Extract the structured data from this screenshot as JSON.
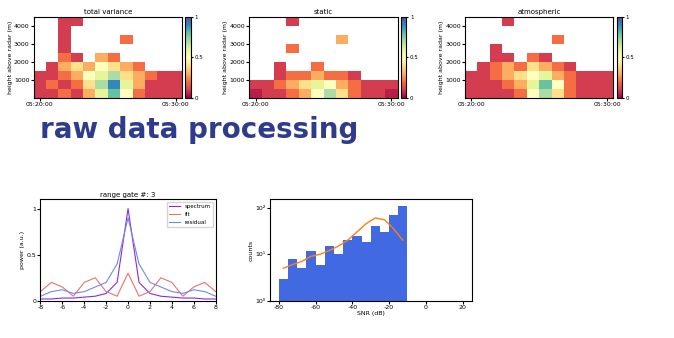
{
  "heading": "raw data processing",
  "chart_data": [
    {
      "type": "heatmap",
      "title": "total variance",
      "y_label": "height above radar (m)",
      "x_edges": [
        0,
        1,
        2,
        3,
        4,
        5,
        6,
        7,
        8,
        9,
        10,
        11,
        12
      ],
      "y_edges": [
        0,
        500,
        1000,
        1500,
        2000,
        2500,
        3000,
        3500,
        4000,
        4500
      ],
      "cells": [
        [
          0.1,
          0.1,
          0.2,
          0.1,
          0.3,
          0.6,
          0.8,
          0.5,
          0.2,
          0.1,
          0.1,
          0.1
        ],
        [
          0.1,
          0.2,
          0.1,
          0.2,
          0.4,
          0.7,
          0.9,
          0.6,
          0.3,
          0.1,
          0.1,
          0.1
        ],
        [
          0.1,
          0.1,
          0.2,
          0.3,
          0.5,
          0.6,
          0.7,
          0.4,
          0.3,
          0.2,
          0.1,
          0.1
        ],
        [
          null,
          0.1,
          0.3,
          0.4,
          0.3,
          0.5,
          0.4,
          0.3,
          0.2,
          null,
          null,
          null
        ],
        [
          null,
          null,
          0.2,
          0.1,
          null,
          0.3,
          0.2,
          null,
          null,
          null,
          null,
          null
        ],
        [
          null,
          null,
          0.1,
          null,
          null,
          null,
          null,
          null,
          null,
          null,
          null,
          null
        ],
        [
          null,
          null,
          0.1,
          null,
          null,
          null,
          null,
          0.2,
          null,
          null,
          null,
          null
        ],
        [
          null,
          null,
          0.1,
          null,
          null,
          null,
          null,
          null,
          null,
          null,
          null,
          null
        ],
        [
          null,
          null,
          0.1,
          0.1,
          null,
          null,
          null,
          null,
          null,
          null,
          null,
          null
        ]
      ],
      "xlim": [
        0,
        12
      ],
      "ylim": [
        0,
        4500
      ],
      "xticks": [
        {
          "value": 0.5,
          "label": "05:20:00"
        },
        {
          "value": 11.5,
          "label": "05:30:00"
        }
      ],
      "yticks": [
        1000,
        2000,
        3000,
        4000
      ],
      "colorbar": {
        "range": [
          0,
          1
        ],
        "ticks": [
          0,
          0.5,
          1
        ]
      }
    },
    {
      "type": "heatmap",
      "title": "static",
      "y_label": "height above radar (m)",
      "x_edges": [
        0,
        1,
        2,
        3,
        4,
        5,
        6,
        7,
        8,
        9,
        10,
        11,
        12
      ],
      "y_edges": [
        0,
        500,
        1000,
        1500,
        2000,
        2500,
        3000,
        3500,
        4000,
        4500
      ],
      "cells": [
        [
          0.05,
          0.1,
          0.1,
          0.2,
          0.3,
          0.5,
          0.7,
          0.4,
          0.2,
          0.1,
          0.1,
          0.05
        ],
        [
          0.1,
          0.1,
          0.2,
          0.3,
          0.4,
          0.6,
          0.5,
          0.3,
          0.2,
          0.1,
          0.1,
          0.1
        ],
        [
          null,
          null,
          0.1,
          0.2,
          0.2,
          0.3,
          0.2,
          0.2,
          0.1,
          null,
          null,
          null
        ],
        [
          null,
          null,
          0.1,
          null,
          null,
          0.2,
          null,
          null,
          null,
          null,
          null,
          null
        ],
        [
          null,
          null,
          null,
          null,
          null,
          null,
          null,
          null,
          null,
          null,
          null,
          null
        ],
        [
          null,
          null,
          null,
          0.2,
          null,
          null,
          null,
          null,
          null,
          null,
          null,
          null
        ],
        [
          null,
          null,
          null,
          null,
          null,
          null,
          null,
          0.3,
          null,
          null,
          null,
          null
        ],
        [
          null,
          null,
          null,
          null,
          null,
          null,
          null,
          null,
          null,
          null,
          null,
          null
        ],
        [
          null,
          null,
          null,
          0.1,
          null,
          null,
          null,
          null,
          null,
          null,
          null,
          null
        ]
      ],
      "xlim": [
        0,
        12
      ],
      "ylim": [
        0,
        4500
      ],
      "xticks": [
        {
          "value": 0.5,
          "label": "05:20:00"
        },
        {
          "value": 11.5,
          "label": "05:30:00"
        }
      ],
      "yticks": [
        1000,
        2000,
        3000,
        4000
      ],
      "colorbar": {
        "range": [
          0,
          1
        ],
        "ticks": [
          0,
          0.5,
          1
        ]
      }
    },
    {
      "type": "heatmap",
      "title": "atmospheric",
      "y_label": "height above radar (m)",
      "x_edges": [
        0,
        1,
        2,
        3,
        4,
        5,
        6,
        7,
        8,
        9,
        10,
        11,
        12
      ],
      "y_edges": [
        0,
        500,
        1000,
        1500,
        2000,
        2500,
        3000,
        3500,
        4000,
        4500
      ],
      "cells": [
        [
          0.1,
          0.1,
          0.1,
          0.1,
          0.2,
          0.5,
          0.7,
          0.4,
          0.2,
          0.1,
          0.1,
          0.1
        ],
        [
          0.1,
          0.1,
          0.1,
          0.2,
          0.3,
          0.6,
          0.8,
          0.5,
          0.2,
          0.1,
          0.1,
          0.1
        ],
        [
          0.1,
          0.1,
          0.2,
          0.3,
          0.4,
          0.5,
          0.6,
          0.3,
          0.2,
          0.1,
          0.1,
          0.1
        ],
        [
          null,
          0.1,
          0.2,
          0.3,
          0.2,
          0.4,
          0.3,
          0.2,
          0.1,
          null,
          null,
          null
        ],
        [
          null,
          null,
          0.1,
          0.1,
          null,
          0.2,
          0.1,
          null,
          null,
          null,
          null,
          null
        ],
        [
          null,
          null,
          0.1,
          null,
          null,
          null,
          null,
          null,
          null,
          null,
          null,
          null
        ],
        [
          null,
          null,
          null,
          null,
          null,
          null,
          null,
          0.2,
          null,
          null,
          null,
          null
        ],
        [
          null,
          null,
          null,
          null,
          null,
          null,
          null,
          null,
          null,
          null,
          null,
          null
        ],
        [
          null,
          null,
          null,
          0.1,
          null,
          null,
          null,
          null,
          null,
          null,
          null,
          null
        ]
      ],
      "xlim": [
        0,
        12
      ],
      "ylim": [
        0,
        4500
      ],
      "xticks": [
        {
          "value": 0.5,
          "label": "05:20:00"
        },
        {
          "value": 11.5,
          "label": "05:30:00"
        }
      ],
      "yticks": [
        1000,
        2000,
        3000,
        4000
      ],
      "colorbar": {
        "range": [
          0,
          1
        ],
        "ticks": [
          0,
          0.5,
          1
        ]
      }
    },
    {
      "type": "line",
      "title": "range gate #: 3",
      "y_label": "power (a.u.)",
      "x": [
        -8,
        -7,
        -6,
        -5,
        -4,
        -3,
        -2,
        -1,
        0,
        1,
        2,
        3,
        4,
        5,
        6,
        7,
        8
      ],
      "series": [
        {
          "name": "spectrum",
          "color": "#8a2be2",
          "values": [
            0.02,
            0.02,
            0.03,
            0.03,
            0.04,
            0.05,
            0.08,
            0.2,
            1.0,
            0.2,
            0.08,
            0.05,
            0.04,
            0.03,
            0.03,
            0.02,
            0.02
          ]
        },
        {
          "name": "fit",
          "color": "#e8736c",
          "values": [
            0.1,
            0.2,
            0.15,
            0.05,
            0.2,
            0.25,
            0.1,
            0.05,
            0.3,
            0.05,
            0.1,
            0.25,
            0.2,
            0.05,
            0.15,
            0.2,
            0.1
          ]
        },
        {
          "name": "residual",
          "color": "#6c8ce8",
          "values": [
            0.05,
            0.1,
            0.12,
            0.08,
            0.1,
            0.15,
            0.2,
            0.4,
            0.9,
            0.4,
            0.2,
            0.15,
            0.1,
            0.08,
            0.12,
            0.1,
            0.05
          ]
        }
      ],
      "xlim": [
        -8,
        8
      ],
      "ylim": [
        0,
        1.1
      ],
      "xticks": [
        -8,
        -6,
        -4,
        -2,
        0,
        2,
        4,
        6,
        8
      ],
      "yticks": [
        0,
        0.5,
        1
      ],
      "legend": "upper right"
    },
    {
      "type": "histogram",
      "x_label": "SNR (dB)",
      "y_label": "counts",
      "bins": [
        -80,
        -75,
        -70,
        -65,
        -60,
        -55,
        -50,
        -45,
        -40,
        -35,
        -30,
        -25,
        -20,
        -15,
        -10
      ],
      "counts": [
        3,
        8,
        5,
        12,
        6,
        15,
        10,
        20,
        25,
        18,
        40,
        30,
        70,
        110
      ],
      "color": "#4169e1",
      "series": [
        {
          "type": "line",
          "color": "#ff7f0e",
          "values": [
            5,
            6,
            7,
            9,
            10,
            12,
            15,
            20,
            30,
            45,
            60,
            55,
            35,
            20
          ]
        }
      ],
      "log": "y",
      "xlim": [
        -85,
        25
      ],
      "ylim": [
        1,
        150
      ],
      "xticks": [
        -80,
        -60,
        -40,
        -20,
        0,
        20
      ],
      "yticks": [
        {
          "value": 1,
          "label": "10⁰"
        },
        {
          "value": 10,
          "label": "10¹"
        },
        {
          "value": 100,
          "label": "10²"
        }
      ]
    }
  ]
}
